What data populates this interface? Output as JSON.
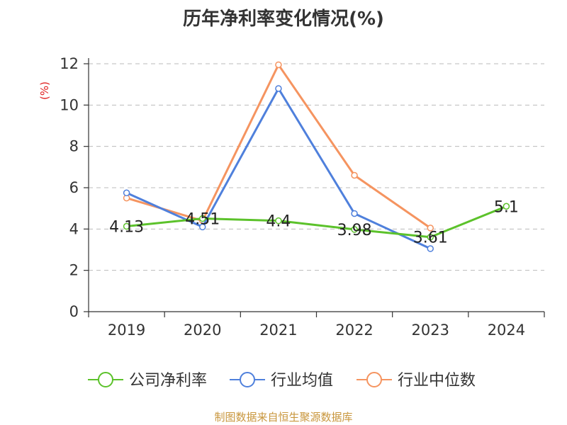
{
  "title": "历年净利率变化情况(%)",
  "footer": "制图数据来自恒生聚源数据库",
  "chart_data": {
    "type": "line",
    "title": "历年净利率变化情况(%)",
    "xlabel": "",
    "ylabel": "(%)",
    "categories": [
      "2019",
      "2020",
      "2021",
      "2022",
      "2023",
      "2024"
    ],
    "ylim": [
      0,
      12
    ],
    "yticks": [
      0,
      2,
      4,
      6,
      8,
      10,
      12
    ],
    "grid": "horizontal-dashed",
    "legend_position": "bottom",
    "series": [
      {
        "name": "公司净利率",
        "color": "#5cc22b",
        "values": [
          4.13,
          4.51,
          4.4,
          3.98,
          3.61,
          5.1
        ],
        "labels": [
          "4.13",
          "4.51",
          "4.4",
          "3.98",
          "3.61",
          "5.1"
        ]
      },
      {
        "name": "行业均值",
        "color": "#4f80dc",
        "values": [
          5.75,
          4.1,
          10.8,
          4.75,
          3.05,
          null
        ]
      },
      {
        "name": "行业中位数",
        "color": "#f59460",
        "values": [
          5.5,
          4.4,
          11.95,
          6.6,
          4.05,
          null
        ]
      }
    ]
  }
}
